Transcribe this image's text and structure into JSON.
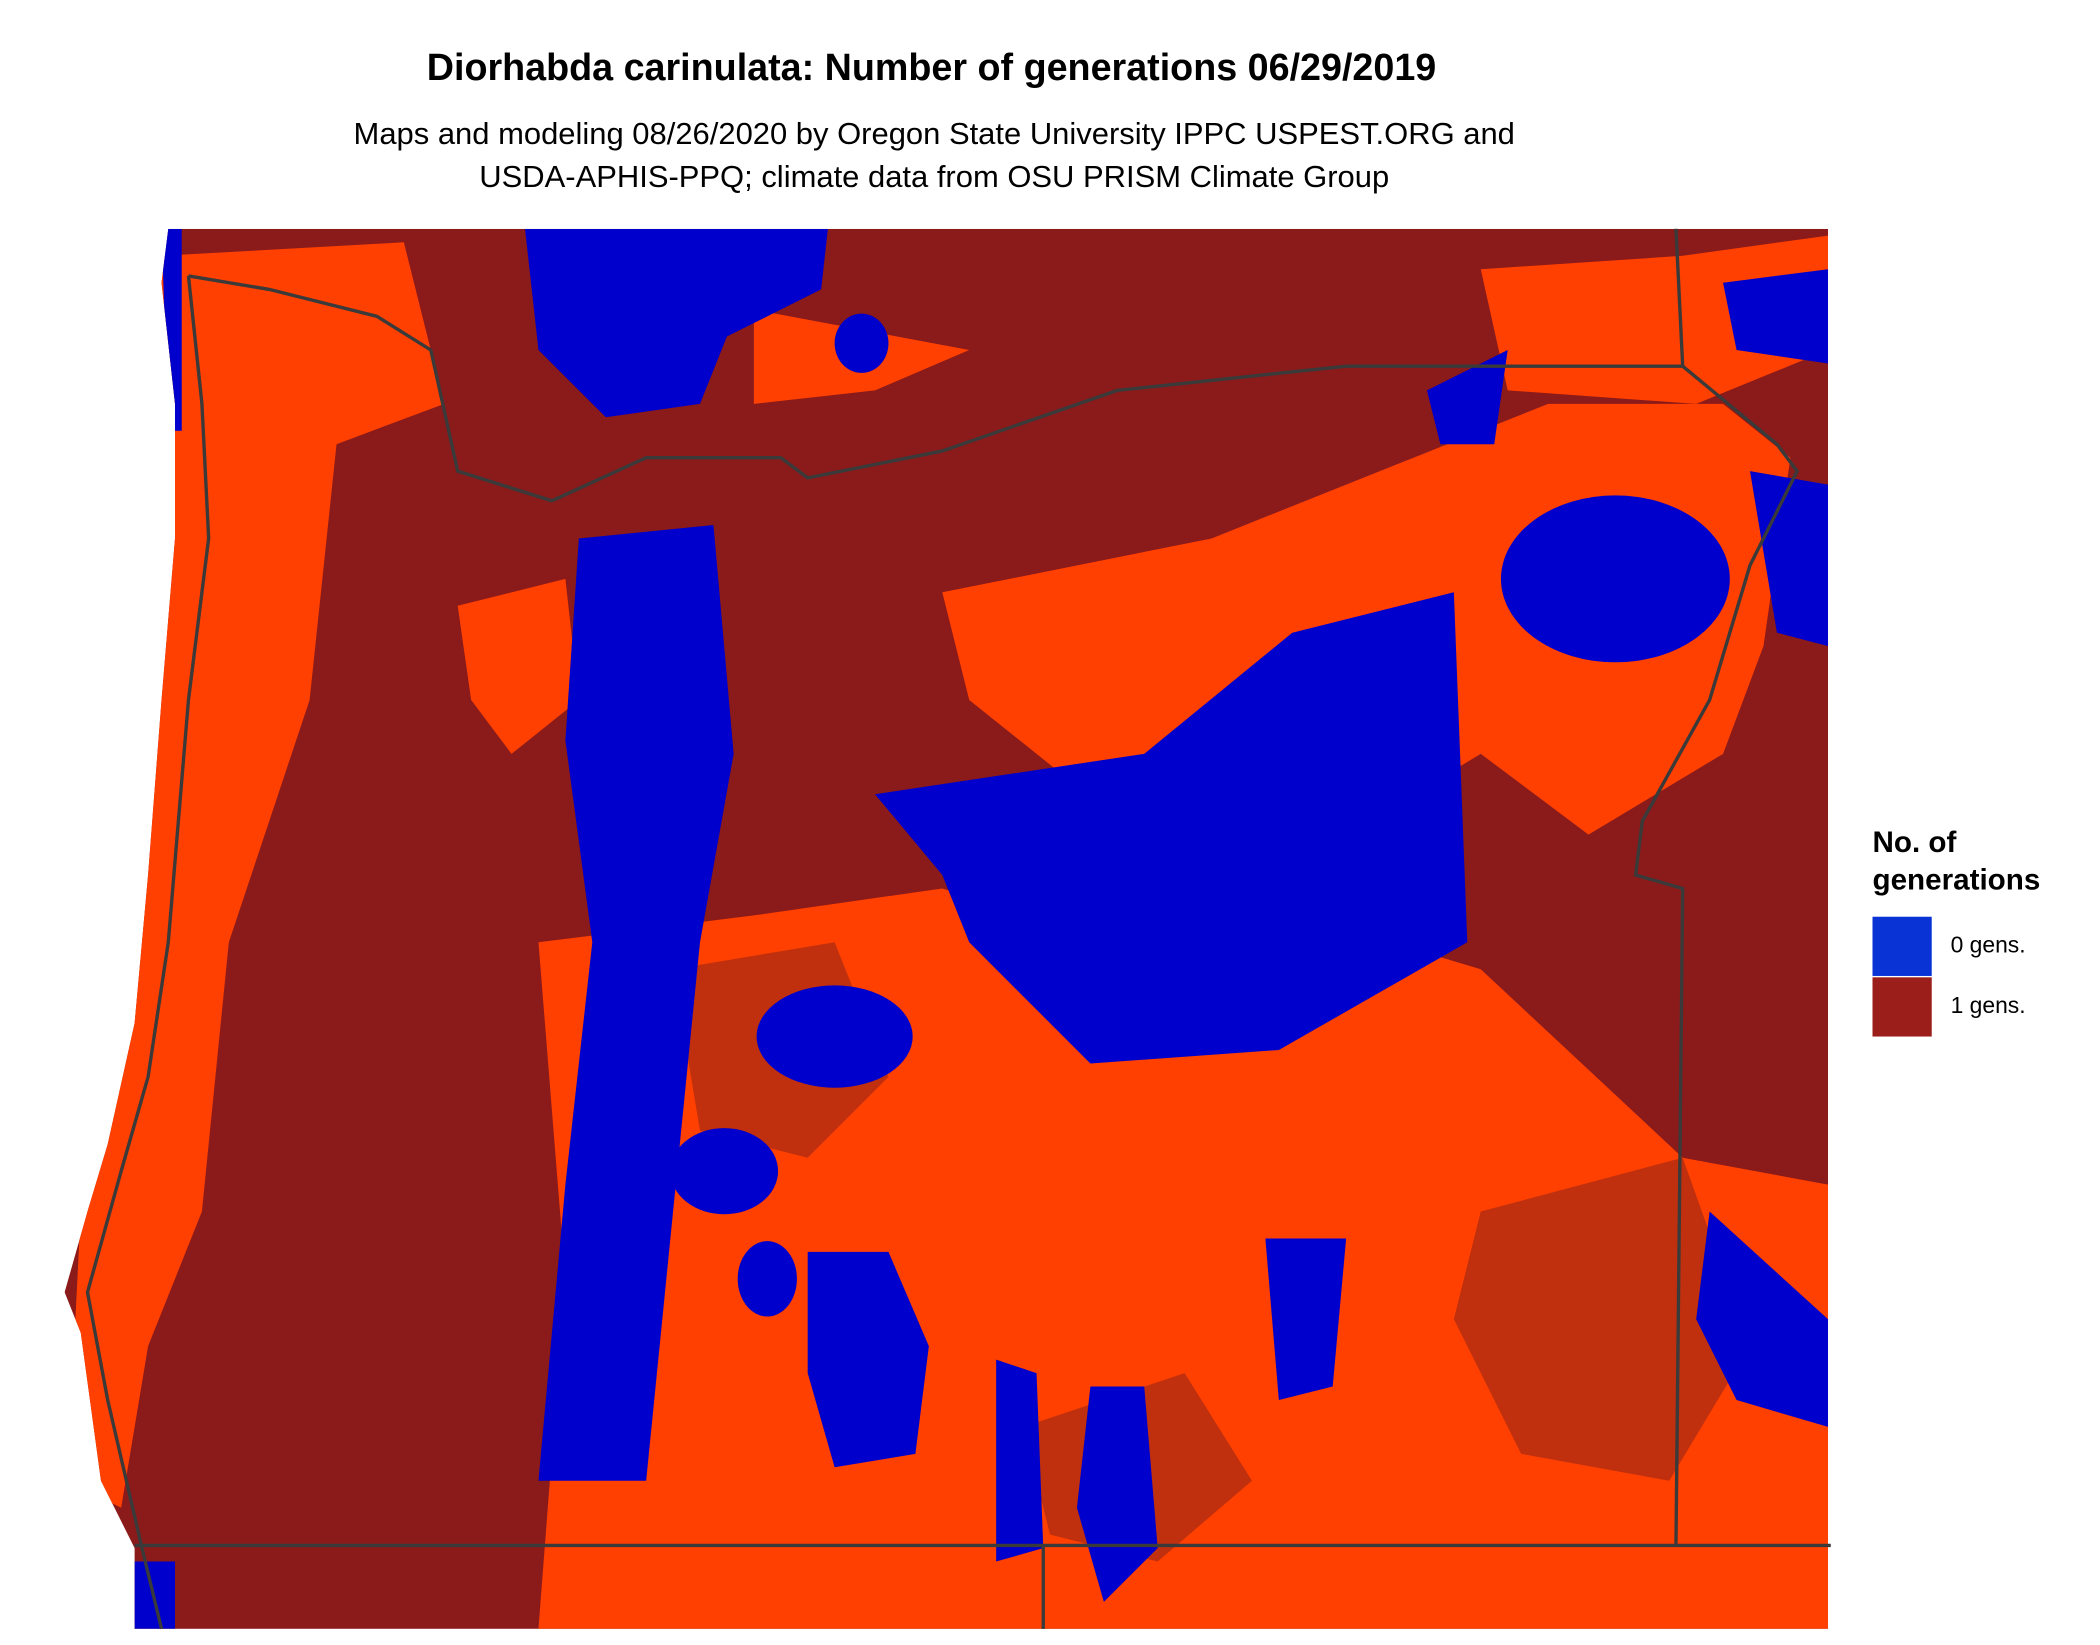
{
  "title": "Diorhabda carinulata: Number of generations 06/29/2019",
  "subtitle": [
    "Maps and modeling 08/26/2020 by Oregon State University IPPC USPEST.ORG and",
    "USDA-APHIS-PPQ; climate data from OSU PRISM Climate Group"
  ],
  "legend": {
    "title": [
      "No. of",
      "generations"
    ],
    "items": [
      {
        "label": "0 gens.",
        "color": "#0a33d6"
      },
      {
        "label": "1 gens.",
        "color": "#9b1e1a"
      }
    ]
  }
}
